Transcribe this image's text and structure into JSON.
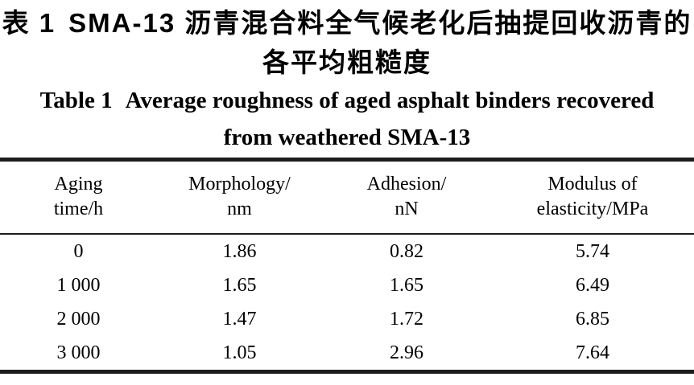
{
  "caption_cn": {
    "label": "表 1",
    "line1": "SMA-13 沥青混合料全气候老化后抽提回收沥青的",
    "line2": "各平均粗糙度"
  },
  "caption_en": {
    "label": "Table 1",
    "line1": "Average roughness of aged asphalt binders recovered",
    "line2": "from weathered SMA-13"
  },
  "table": {
    "headers": [
      {
        "line1": "Aging",
        "line2": "time/h"
      },
      {
        "line1": "Morphology/",
        "line2": "nm"
      },
      {
        "line1": "Adhesion/",
        "line2": "nN"
      },
      {
        "line1": "Modulus of",
        "line2": "elasticity/MPa"
      }
    ],
    "rows": [
      [
        "0",
        "1.86",
        "0.82",
        "5.74"
      ],
      [
        "1 000",
        "1.65",
        "1.65",
        "6.49"
      ],
      [
        "2 000",
        "1.47",
        "1.72",
        "6.85"
      ],
      [
        "3 000",
        "1.05",
        "2.96",
        "7.64"
      ]
    ]
  },
  "colors": {
    "text": "#000000",
    "rule": "#1c1c1c",
    "background": "#ffffff"
  }
}
